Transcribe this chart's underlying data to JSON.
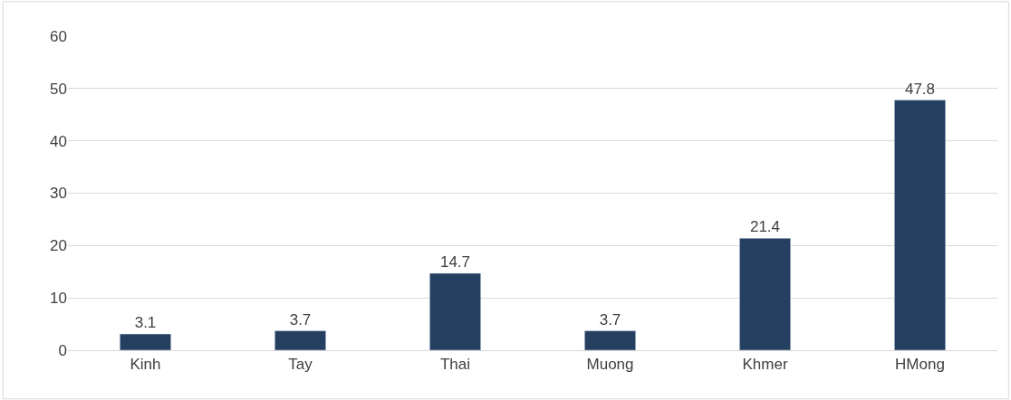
{
  "chart_data": {
    "type": "bar",
    "categories": [
      "Kinh",
      "Tay",
      "Thai",
      "Muong",
      "Khmer",
      "HMong"
    ],
    "values": [
      3.1,
      3.7,
      14.7,
      3.7,
      21.4,
      47.8
    ],
    "color": "#243f60",
    "ylim": [
      0,
      60
    ],
    "yticks": [
      0,
      10,
      20,
      30,
      40,
      50,
      60
    ],
    "grid": "y",
    "data_labels": true,
    "legend": false
  }
}
